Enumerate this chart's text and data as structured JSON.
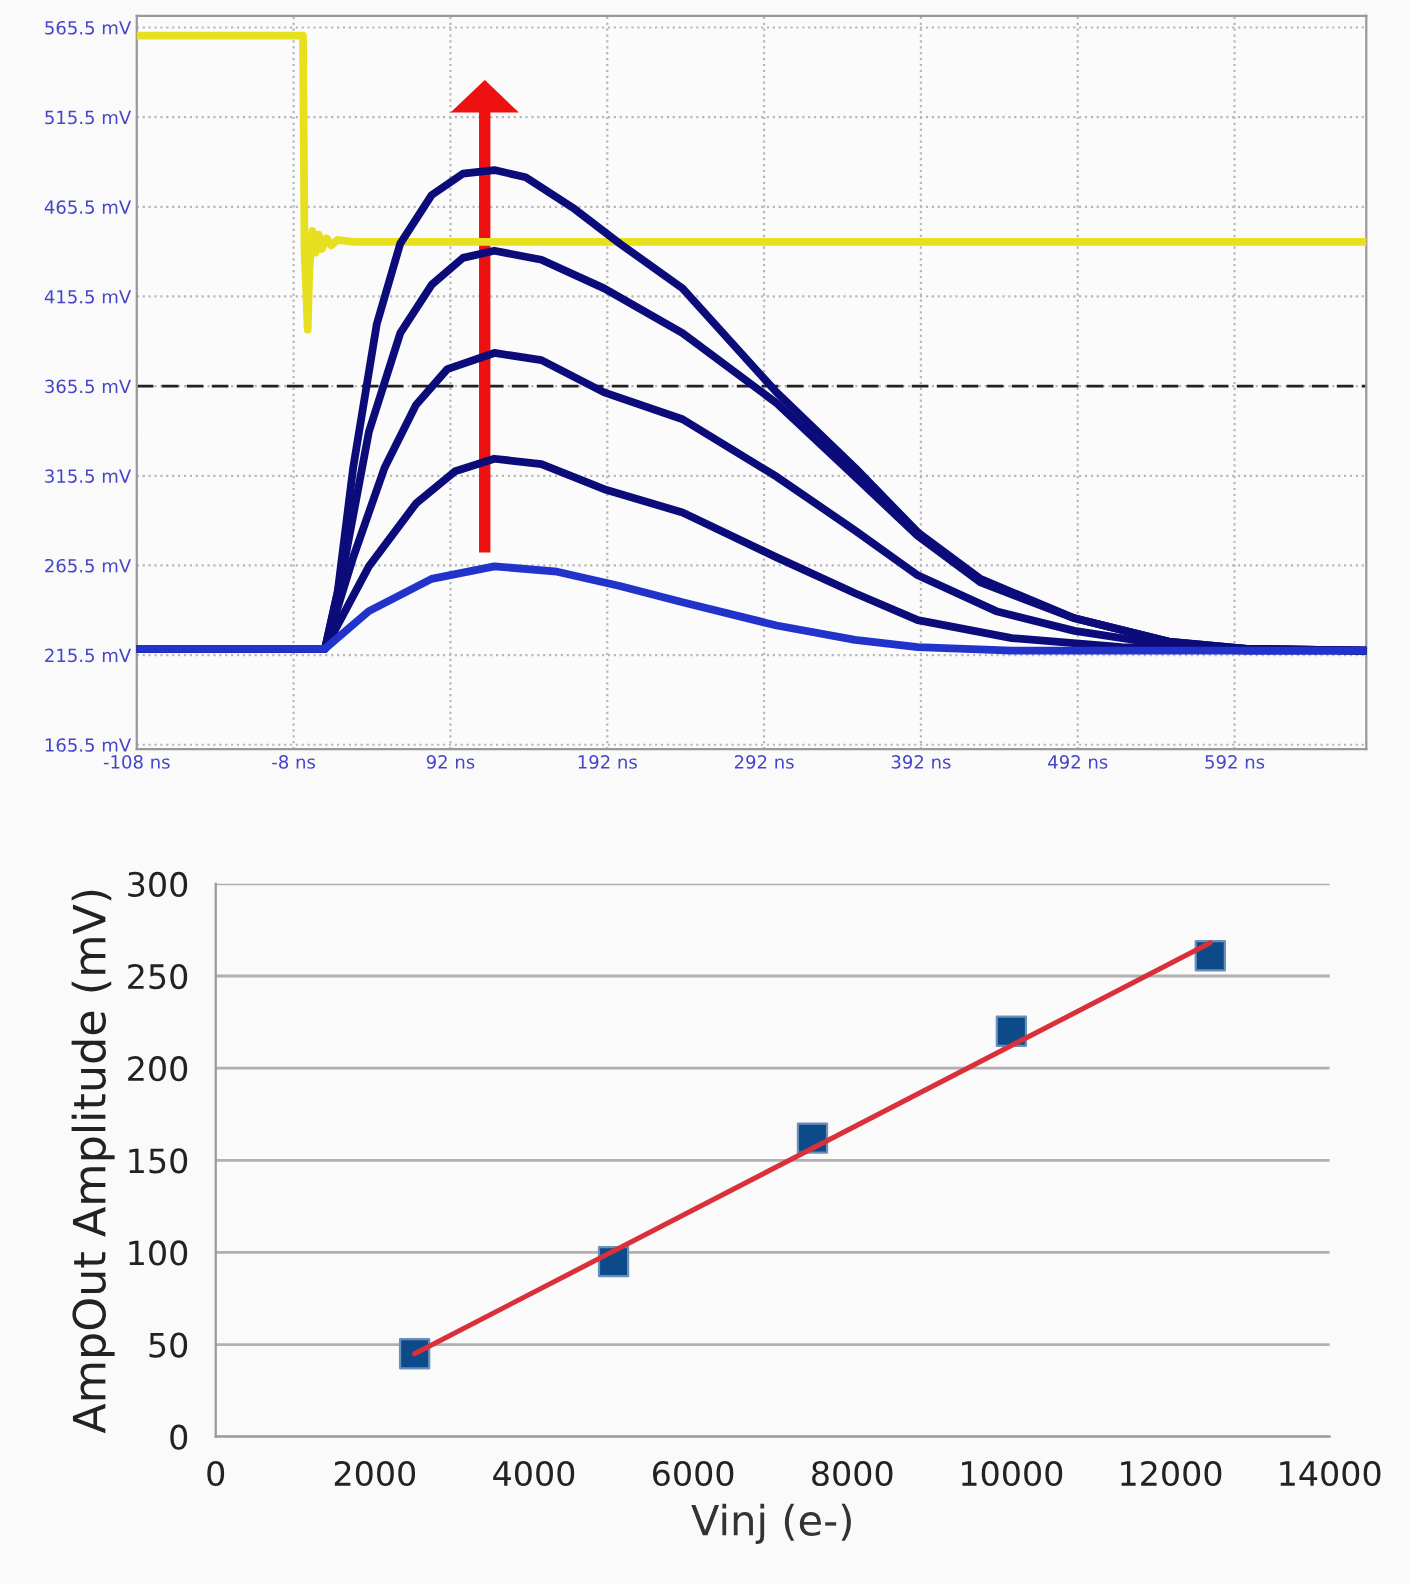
{
  "chart_data": [
    {
      "type": "line",
      "xlim": [
        -108,
        676
      ],
      "ylim": [
        163,
        572
      ],
      "xticks": [
        {
          "value": -108,
          "label": "-108 ns"
        },
        {
          "value": -8,
          "label": "-8 ns"
        },
        {
          "value": 92,
          "label": "92 ns"
        },
        {
          "value": 192,
          "label": "192 ns"
        },
        {
          "value": 292,
          "label": "292 ns"
        },
        {
          "value": 392,
          "label": "392 ns"
        },
        {
          "value": 492,
          "label": "492 ns"
        },
        {
          "value": 592,
          "label": "592 ns"
        }
      ],
      "yticks": [
        {
          "value": 165.5,
          "label": "165.5 mV"
        },
        {
          "value": 215.5,
          "label": "215.5 mV"
        },
        {
          "value": 265.5,
          "label": "265.5 mV"
        },
        {
          "value": 315.5,
          "label": "315.5 mV"
        },
        {
          "value": 365.5,
          "label": "365.5 mV"
        },
        {
          "value": 415.5,
          "label": "415.5 mV"
        },
        {
          "value": 465.5,
          "label": "465.5 mV"
        },
        {
          "value": 515.5,
          "label": "515.5 mV"
        },
        {
          "value": 565.5,
          "label": "565.5 mV"
        }
      ],
      "grid": true,
      "ref_lines": [
        {
          "axis": "y",
          "value": 365.5,
          "color": "#222222",
          "line_style": "dashed"
        }
      ],
      "series": [
        {
          "color": "#e6e01e",
          "x": [
            -108,
            -2,
            -1,
            0,
            1,
            2,
            4,
            6,
            8,
            10,
            13,
            16,
            20,
            30,
            676
          ],
          "values": [
            561,
            561,
            440,
            420,
            397,
            430,
            452,
            440,
            450,
            442,
            448,
            444,
            447,
            446,
            446
          ]
        },
        {
          "color": "#0b0b7a",
          "x": [
            -108,
            12,
            20,
            30,
            45,
            60,
            80,
            100,
            120,
            140,
            170,
            200,
            240,
            300,
            350,
            390,
            430,
            490,
            550,
            600,
            676
          ],
          "values": [
            219,
            219,
            250,
            320,
            400,
            445,
            472,
            484,
            486,
            482,
            465,
            445,
            420,
            362,
            320,
            284,
            258,
            236,
            223,
            219,
            218
          ]
        },
        {
          "color": "#0b0b7a",
          "x": [
            -108,
            12,
            25,
            40,
            60,
            80,
            100,
            120,
            150,
            190,
            240,
            300,
            350,
            390,
            430,
            490,
            550,
            600,
            676
          ],
          "values": [
            219,
            219,
            270,
            340,
            395,
            422,
            437,
            441,
            436,
            420,
            395,
            356,
            315,
            282,
            256,
            236,
            223,
            219,
            218
          ]
        },
        {
          "color": "#0b0b7a",
          "x": [
            -108,
            12,
            30,
            50,
            70,
            90,
            120,
            150,
            190,
            240,
            300,
            350,
            390,
            440,
            490,
            550,
            600,
            676
          ],
          "values": [
            219,
            219,
            270,
            320,
            355,
            375,
            384,
            380,
            362,
            347,
            315,
            285,
            260,
            240,
            229,
            221,
            219,
            218
          ]
        },
        {
          "color": "#0b0b7a",
          "x": [
            -108,
            12,
            40,
            70,
            95,
            120,
            150,
            190,
            240,
            300,
            350,
            390,
            450,
            520,
            600,
            676
          ],
          "values": [
            219,
            219,
            265,
            300,
            318,
            325,
            322,
            308,
            295,
            270,
            250,
            235,
            225,
            220,
            218,
            218
          ]
        },
        {
          "color": "#2233cc",
          "x": [
            -108,
            12,
            40,
            80,
            120,
            160,
            200,
            240,
            300,
            350,
            390,
            450,
            676
          ],
          "values": [
            219,
            219,
            240,
            258,
            265,
            262,
            254,
            245,
            232,
            224,
            220,
            218,
            218
          ]
        }
      ]
    },
    {
      "type": "scatter",
      "xlabel": "Vinj (e-)",
      "ylabel": "AmpOut Amplitude (mV)",
      "xlim": [
        0,
        14000
      ],
      "ylim": [
        0,
        300
      ],
      "xticks": [
        0,
        2000,
        4000,
        6000,
        8000,
        10000,
        12000,
        14000
      ],
      "yticks": [
        0,
        50,
        100,
        150,
        200,
        250,
        300
      ],
      "grid": "y",
      "series": [
        {
          "type": "scatter",
          "marker": "square",
          "color": "#0d4a8a",
          "x": [
            2500,
            5000,
            7500,
            10000,
            12500
          ],
          "values": [
            45,
            95,
            162,
            220,
            261
          ]
        },
        {
          "type": "line",
          "color": "#d9303a",
          "x": [
            2500,
            12500
          ],
          "values": [
            45,
            268
          ]
        }
      ]
    }
  ]
}
